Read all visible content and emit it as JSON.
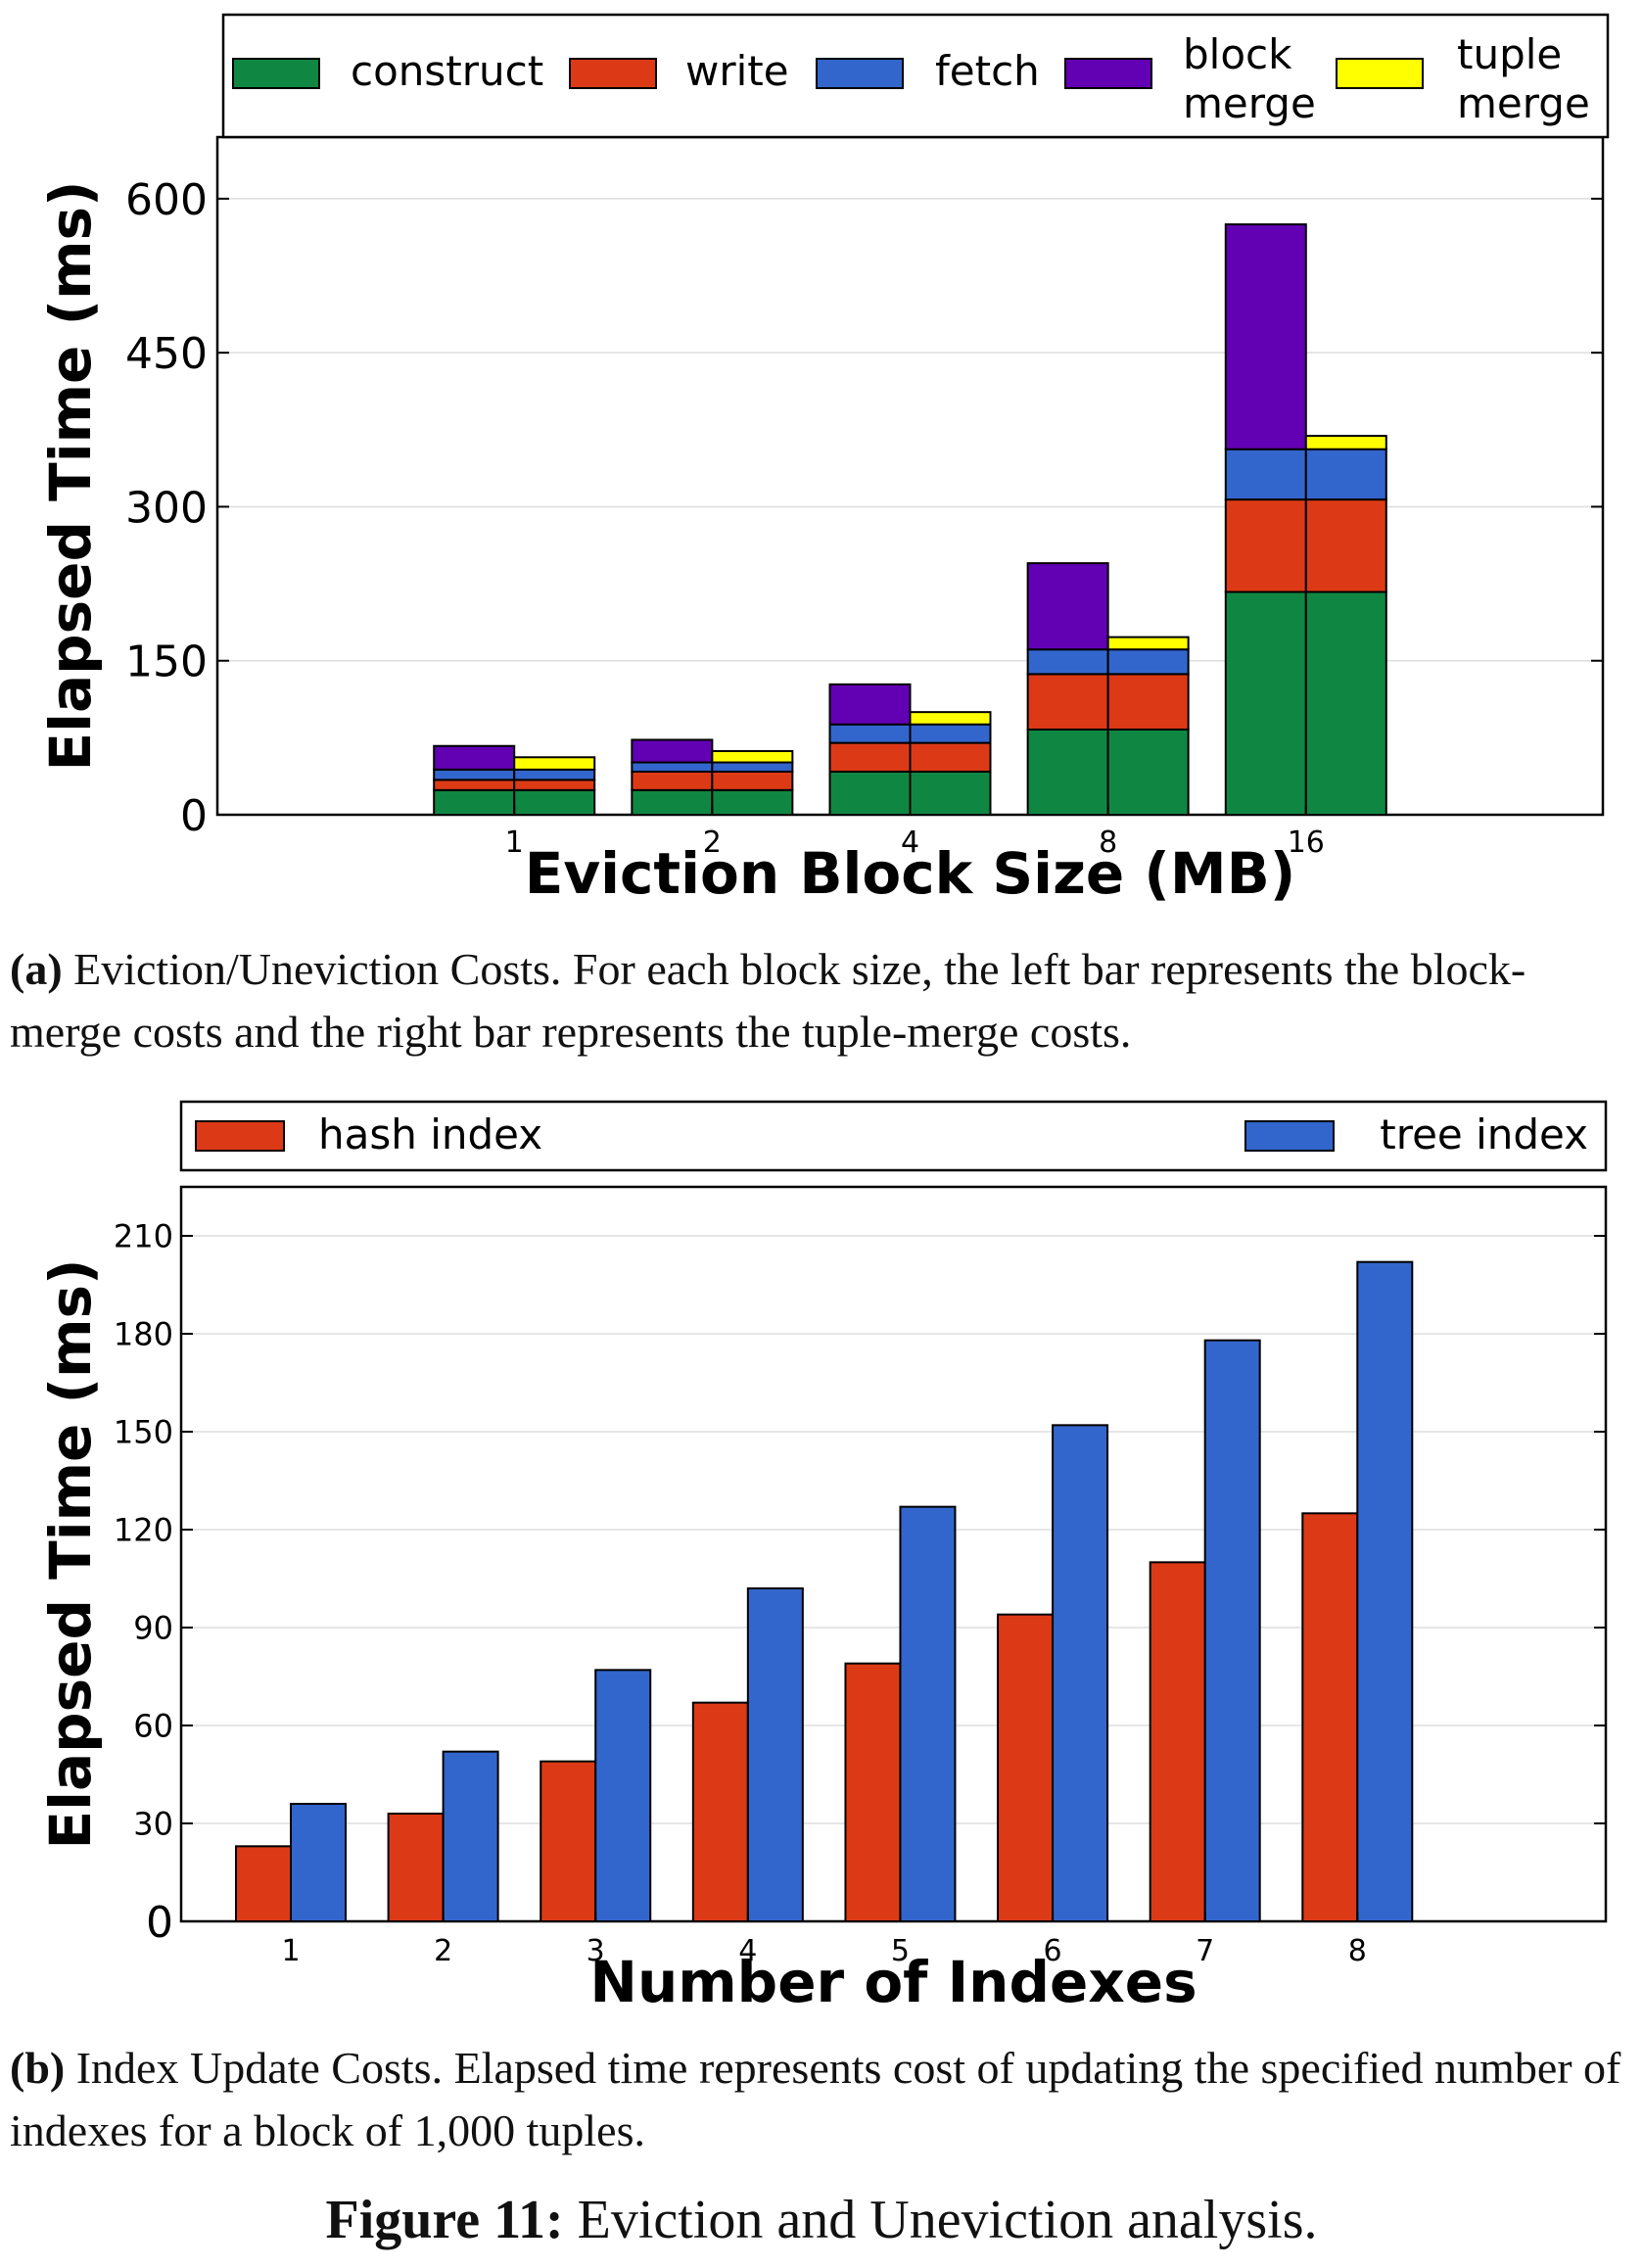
{
  "chart_data": [
    {
      "type": "bar",
      "stacked": true,
      "ylabel": "Elapsed Time (ms)",
      "xlabel": "Eviction Block Size (MB)",
      "categories": [
        "1",
        "2",
        "4",
        "8",
        "16"
      ],
      "ylim": [
        0,
        660
      ],
      "yticks": [
        0,
        150,
        300,
        450,
        600
      ],
      "grid": "horizontal",
      "legend_position": "top",
      "bar_groups": [
        "block merge",
        "tuple merge"
      ],
      "series": [
        {
          "name": "construct",
          "color": "#0f8743",
          "block_merge": [
            24,
            24,
            42,
            83,
            217
          ],
          "tuple_merge": [
            24,
            24,
            42,
            83,
            217
          ]
        },
        {
          "name": "write",
          "color": "#dc3a16",
          "block_merge": [
            10,
            18,
            28,
            54,
            90
          ],
          "tuple_merge": [
            10,
            18,
            28,
            54,
            90
          ]
        },
        {
          "name": "fetch",
          "color": "#3366cc",
          "block_merge": [
            10,
            9,
            18,
            24,
            49
          ],
          "tuple_merge": [
            10,
            9,
            18,
            24,
            49
          ]
        },
        {
          "name": "block\nmerge",
          "color": "#6200b3",
          "block_merge": [
            23,
            22,
            39,
            84,
            219
          ],
          "tuple_merge": [
            0,
            0,
            0,
            0,
            0
          ]
        },
        {
          "name": "tuple\nmerge",
          "color": "#ffff00",
          "block_merge": [
            0,
            0,
            0,
            0,
            0
          ],
          "tuple_merge": [
            12,
            11,
            12,
            12,
            13
          ]
        }
      ]
    },
    {
      "type": "bar",
      "ylabel": "Elapsed Time (ms)",
      "xlabel": "Number of Indexes",
      "categories": [
        "1",
        "2",
        "3",
        "4",
        "5",
        "6",
        "7",
        "8"
      ],
      "ylim": [
        0,
        225
      ],
      "yticks": [
        0,
        30,
        60,
        90,
        120,
        150,
        180,
        210
      ],
      "grid": "horizontal",
      "legend_position": "top",
      "series": [
        {
          "name": "hash index",
          "color": "#dc3a16",
          "values": [
            23,
            33,
            49,
            67,
            79,
            94,
            110,
            125
          ]
        },
        {
          "name": "tree index",
          "color": "#3366cc",
          "values": [
            36,
            52,
            77,
            102,
            127,
            152,
            178,
            202
          ]
        }
      ]
    }
  ],
  "captions": {
    "a_tag": "(a)",
    "a_text": " Eviction/Uneviction Costs. For each block size, the left bar represents the block-merge costs and the right bar represents the tuple-merge costs.",
    "b_tag": "(b)",
    "b_text": " Index Update Costs. Elapsed time represents cost of updating the specified number of indexes for a block of 1,000 tuples.",
    "figure_tag": "Figure 11:",
    "figure_text": " Eviction and Uneviction analysis."
  }
}
